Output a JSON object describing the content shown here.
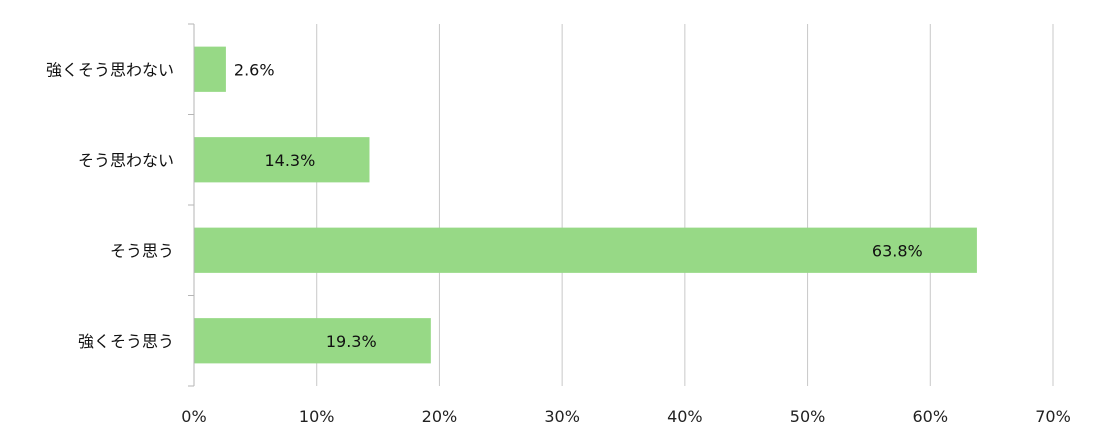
{
  "chart_data": {
    "type": "bar",
    "orientation": "horizontal",
    "categories": [
      "強くそう思わない",
      "そう思わない",
      "そう思う",
      "強くそう思う"
    ],
    "values": [
      2.6,
      14.3,
      63.8,
      19.3
    ],
    "value_labels": [
      "2.6%",
      "14.3%",
      "63.8%",
      "19.3%"
    ],
    "xlim": [
      0,
      70
    ],
    "x_ticks": [
      0,
      10,
      20,
      30,
      40,
      50,
      60,
      70
    ],
    "x_tick_labels": [
      "0%",
      "10%",
      "20%",
      "30%",
      "40%",
      "50%",
      "60%",
      "70%"
    ],
    "title": "",
    "xlabel": "",
    "ylabel": "",
    "grid": true,
    "legend": "none",
    "colors": {
      "bar": "#97D986",
      "grid": "#C8C8C8",
      "axis": "#B5B5B5"
    }
  }
}
